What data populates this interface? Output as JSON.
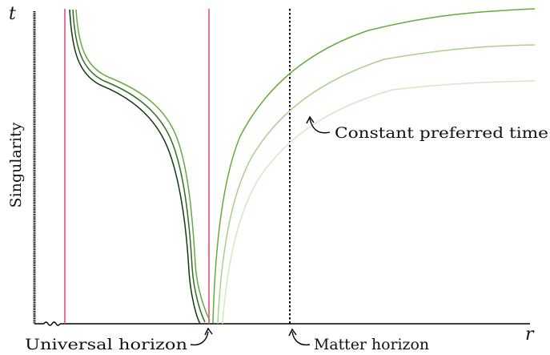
{
  "labels": {
    "t_axis": "t",
    "r_axis": "r",
    "singularity": "Singularity",
    "constant_preferred_time": "Constant preferred time",
    "universal_horizon": "Universal horizon",
    "matter_horizon": "Matter horizon"
  },
  "colors": {
    "axis": "#000000",
    "universal_horizon_lines": "#e0507a",
    "matter_horizon_line": "#000000",
    "curve_darkest": "#0f3a0f",
    "curve_dark": "#2e6e22",
    "curve_mid": "#66aa3c",
    "curve_light": "#a8d08a",
    "curve_lightest": "#d2e8c4"
  },
  "curves": {
    "inner_branch": [
      "curve_darkest",
      "curve_dark",
      "curve_mid"
    ],
    "outer_branch": [
      "curve_mid",
      "curve_light",
      "curve_lightest"
    ]
  },
  "icons": [
    "wavy-break-icon",
    "curved-arrow-icon"
  ]
}
